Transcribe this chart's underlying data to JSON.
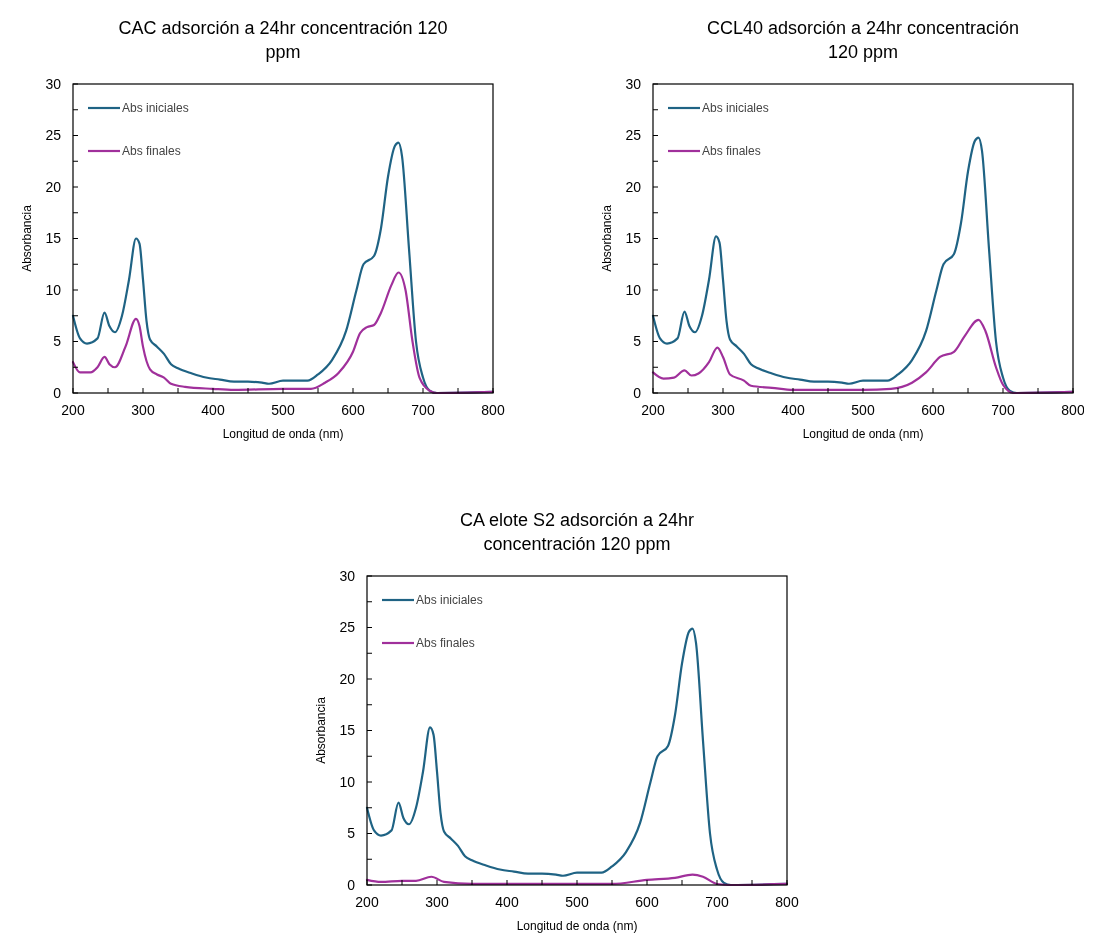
{
  "chart_data": [
    {
      "type": "line",
      "title": "CAC adsorción a 24hr concentración 120 ppm",
      "xlabel": "Longitud de onda (nm)",
      "ylabel": "Absorbancia",
      "xlim": [
        200,
        800
      ],
      "ylim": [
        0,
        30
      ],
      "xticks": [
        200,
        {
          "value": 250,
          "label": null
        },
        300,
        {
          "value": 350,
          "label": null
        },
        400,
        {
          "value": 450,
          "label": null
        },
        500,
        {
          "value": 550,
          "label": null
        },
        600,
        {
          "value": 650,
          "label": null
        },
        700,
        {
          "value": 750,
          "label": null
        },
        800
      ],
      "yticks": [
        0,
        {
          "value": 2.5,
          "label": null
        },
        5,
        {
          "value": 7.5,
          "label": null
        },
        10,
        {
          "value": 12.5,
          "label": null
        },
        15,
        {
          "value": 17.5,
          "label": null
        },
        20,
        {
          "value": 22.5,
          "label": null
        },
        25,
        {
          "value": 27.5,
          "label": null
        },
        30
      ],
      "legend": "top left",
      "marker": "none",
      "line_style": "solid",
      "grid": false,
      "series": [
        {
          "name": "Abs iniciales",
          "color": "#1f6384",
          "x": [
            200,
            210,
            220,
            235,
            245,
            252,
            260,
            270,
            280,
            290,
            295,
            300,
            305,
            310,
            320,
            330,
            340,
            350,
            370,
            390,
            410,
            430,
            450,
            470,
            480,
            500,
            520,
            535,
            550,
            570,
            590,
            605,
            615,
            630,
            640,
            650,
            660,
            665,
            670,
            680,
            690,
            700,
            710,
            720,
            800
          ],
          "values": [
            7.5,
            5.3,
            4.8,
            5.3,
            7.8,
            6.5,
            5.9,
            7.5,
            11,
            15,
            14.5,
            11,
            7,
            5.2,
            4.5,
            3.8,
            2.8,
            2.4,
            1.9,
            1.5,
            1.3,
            1.1,
            1.1,
            1.0,
            0.9,
            1.2,
            1.2,
            1.2,
            1.8,
            3.2,
            6,
            10,
            12.5,
            13.3,
            16,
            21,
            24,
            24.3,
            23,
            14,
            5,
            1.5,
            0.2,
            0,
            0.1
          ]
        },
        {
          "name": "Abs finales",
          "color": "#a0309b",
          "x": [
            200,
            210,
            225,
            235,
            245,
            252,
            260,
            275,
            290,
            295,
            300,
            310,
            320,
            330,
            340,
            360,
            400,
            430,
            500,
            540,
            560,
            580,
            600,
            610,
            620,
            630,
            640,
            655,
            665,
            675,
            685,
            695,
            710,
            720,
            800
          ],
          "values": [
            3,
            2,
            2,
            2.5,
            3.5,
            2.8,
            2.5,
            4.5,
            7.2,
            6.5,
            4.5,
            2.3,
            1.8,
            1.5,
            0.9,
            0.6,
            0.4,
            0.3,
            0.4,
            0.4,
            1,
            2,
            4,
            5.8,
            6.4,
            6.6,
            7.8,
            10.5,
            11.7,
            10,
            5,
            1.5,
            0.2,
            0,
            0.1
          ]
        }
      ]
    },
    {
      "type": "line",
      "title": "CCL40 adsorción a 24hr concentración 120 ppm",
      "xlabel": "Longitud de onda (nm)",
      "ylabel": "Absorbancia",
      "xlim": [
        200,
        800
      ],
      "ylim": [
        0,
        30
      ],
      "xticks": [
        200,
        {
          "value": 250,
          "label": null
        },
        300,
        {
          "value": 350,
          "label": null
        },
        400,
        {
          "value": 450,
          "label": null
        },
        500,
        {
          "value": 550,
          "label": null
        },
        600,
        {
          "value": 650,
          "label": null
        },
        700,
        {
          "value": 750,
          "label": null
        },
        800
      ],
      "yticks": [
        0,
        {
          "value": 2.5,
          "label": null
        },
        5,
        {
          "value": 7.5,
          "label": null
        },
        10,
        {
          "value": 12.5,
          "label": null
        },
        15,
        {
          "value": 17.5,
          "label": null
        },
        20,
        {
          "value": 22.5,
          "label": null
        },
        25,
        {
          "value": 27.5,
          "label": null
        },
        30
      ],
      "legend": "top left",
      "marker": "none",
      "line_style": "solid",
      "grid": false,
      "series": [
        {
          "name": "Abs iniciales",
          "color": "#1f6384",
          "x": [
            200,
            210,
            220,
            235,
            245,
            252,
            260,
            270,
            280,
            290,
            295,
            300,
            305,
            310,
            320,
            330,
            340,
            350,
            370,
            390,
            410,
            430,
            450,
            470,
            480,
            500,
            520,
            535,
            550,
            570,
            590,
            605,
            615,
            630,
            640,
            650,
            660,
            665,
            670,
            680,
            690,
            700,
            710,
            720,
            800
          ],
          "values": [
            7.5,
            5.3,
            4.8,
            5.3,
            7.9,
            6.5,
            5.9,
            7.5,
            11,
            15.2,
            14.6,
            11,
            7,
            5.2,
            4.5,
            3.8,
            2.8,
            2.4,
            1.9,
            1.5,
            1.3,
            1.1,
            1.1,
            1.0,
            0.9,
            1.2,
            1.2,
            1.2,
            1.8,
            3.2,
            6,
            10,
            12.5,
            13.5,
            16.5,
            21.5,
            24.5,
            24.8,
            23.5,
            14,
            5,
            1.5,
            0.2,
            0,
            0.1
          ]
        },
        {
          "name": "Abs finales",
          "color": "#a0309b",
          "x": [
            200,
            215,
            230,
            245,
            255,
            265,
            280,
            292,
            300,
            310,
            330,
            340,
            370,
            400,
            500,
            540,
            570,
            590,
            610,
            630,
            645,
            665,
            675,
            690,
            700,
            715,
            800
          ],
          "values": [
            2,
            1.4,
            1.5,
            2.2,
            1.7,
            1.9,
            3,
            4.4,
            3.5,
            1.8,
            1.2,
            0.7,
            0.5,
            0.3,
            0.3,
            0.4,
            1,
            2,
            3.5,
            4,
            5.5,
            7.1,
            6,
            2.5,
            0.8,
            0,
            0.1
          ]
        }
      ]
    },
    {
      "type": "line",
      "title": "CA elote S2 adsorción a 24hr concentración 120 ppm",
      "xlabel": "Longitud de onda (nm)",
      "ylabel": "Absorbancia",
      "xlim": [
        200,
        800
      ],
      "ylim": [
        0,
        30
      ],
      "xticks": [
        200,
        {
          "value": 250,
          "label": null
        },
        300,
        {
          "value": 350,
          "label": null
        },
        400,
        {
          "value": 450,
          "label": null
        },
        500,
        {
          "value": 550,
          "label": null
        },
        600,
        {
          "value": 650,
          "label": null
        },
        700,
        {
          "value": 750,
          "label": null
        },
        800
      ],
      "yticks": [
        0,
        {
          "value": 2.5,
          "label": null
        },
        5,
        {
          "value": 7.5,
          "label": null
        },
        10,
        {
          "value": 12.5,
          "label": null
        },
        15,
        {
          "value": 17.5,
          "label": null
        },
        20,
        {
          "value": 22.5,
          "label": null
        },
        25,
        {
          "value": 27.5,
          "label": null
        },
        30
      ],
      "legend": "top left",
      "marker": "none",
      "line_style": "solid",
      "grid": false,
      "series": [
        {
          "name": "Abs iniciales",
          "color": "#1f6384",
          "x": [
            200,
            210,
            220,
            235,
            245,
            252,
            260,
            270,
            280,
            290,
            295,
            300,
            305,
            310,
            320,
            330,
            340,
            350,
            370,
            390,
            410,
            430,
            450,
            470,
            480,
            500,
            520,
            535,
            550,
            570,
            590,
            605,
            615,
            630,
            640,
            650,
            660,
            665,
            670,
            680,
            690,
            700,
            710,
            720,
            800
          ],
          "values": [
            7.5,
            5.3,
            4.8,
            5.3,
            8,
            6.5,
            5.9,
            7.5,
            11,
            15.3,
            14.6,
            11,
            7,
            5.2,
            4.5,
            3.8,
            2.8,
            2.4,
            1.9,
            1.5,
            1.3,
            1.1,
            1.1,
            1.0,
            0.9,
            1.2,
            1.2,
            1.2,
            1.8,
            3.2,
            6,
            10,
            12.5,
            13.5,
            16.5,
            21.5,
            24.6,
            24.9,
            23.5,
            14,
            5,
            1.5,
            0.2,
            0,
            0.1
          ]
        },
        {
          "name": "Abs finales",
          "color": "#a0309b",
          "x": [
            200,
            220,
            250,
            270,
            292,
            310,
            350,
            400,
            550,
            600,
            640,
            665,
            680,
            700,
            720,
            800
          ],
          "values": [
            0.5,
            0.3,
            0.4,
            0.4,
            0.8,
            0.3,
            0.1,
            0.1,
            0.1,
            0.5,
            0.7,
            1.0,
            0.8,
            0.1,
            0,
            0.1
          ]
        }
      ]
    }
  ]
}
